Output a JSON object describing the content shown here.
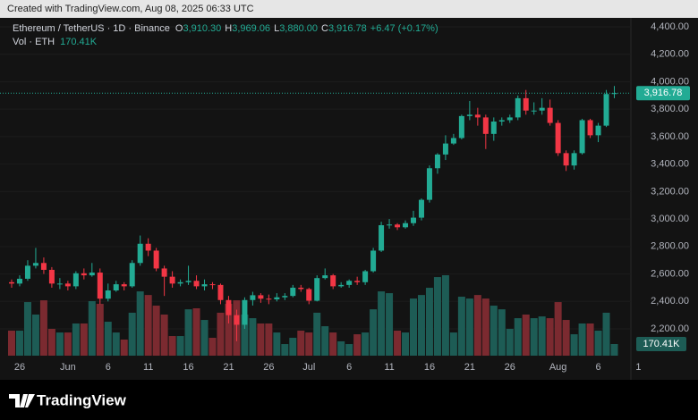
{
  "banner": "Created with TradingView.com, Aug 08, 2025 06:33 UTC",
  "footer": {
    "logo": "TradingView"
  },
  "chart_data": {
    "type": "candlestick",
    "title": "Ethereum / TetherUS · 1D · Binance",
    "ohlc_legend": [
      {
        "key": "O",
        "value": 3910.3,
        "label": "3,910.30"
      },
      {
        "key": "H",
        "value": 3969.06,
        "label": "3,969.06"
      },
      {
        "key": "L",
        "value": 3880,
        "label": "3,880.00"
      },
      {
        "key": "C",
        "value": 3916.78,
        "label": "3,916.78"
      }
    ],
    "change": {
      "value": 6.47,
      "label": "+6.47 (+0.17%)"
    },
    "volume_title": "Vol · ETH",
    "volume_last": {
      "value": 170.41,
      "label": "170.41K"
    },
    "categories": [
      null,
      "26",
      null,
      null,
      null,
      null,
      null,
      "Jun",
      null,
      null,
      null,
      null,
      "6",
      null,
      null,
      null,
      null,
      "11",
      null,
      null,
      null,
      null,
      "16",
      null,
      null,
      null,
      null,
      "21",
      null,
      null,
      null,
      null,
      "26",
      null,
      null,
      null,
      null,
      "Jul",
      null,
      null,
      null,
      null,
      "6",
      null,
      null,
      null,
      null,
      "11",
      null,
      null,
      null,
      null,
      "16",
      null,
      null,
      null,
      null,
      "21",
      null,
      null,
      null,
      null,
      "26",
      null,
      null,
      null,
      null,
      null,
      "Aug",
      null,
      null,
      null,
      null,
      "6",
      null,
      null,
      null,
      null,
      "1"
    ],
    "open": [
      2540,
      2530,
      2565,
      2660,
      2680,
      2630,
      2530,
      2530,
      2510,
      2605,
      2590,
      2610,
      2420,
      2480,
      2525,
      2510,
      2680,
      2820,
      2770,
      2640,
      2580,
      2530,
      2540,
      2550,
      2510,
      2525,
      2520,
      2410,
      2300,
      2230,
      2410,
      2445,
      2420,
      2415,
      2430,
      2440,
      2500,
      2490,
      2405,
      2570,
      2590,
      2510,
      2520,
      2550,
      2540,
      2620,
      2770,
      2955,
      2960,
      2940,
      2970,
      3010,
      3140,
      3370,
      3470,
      3550,
      3590,
      3750,
      3760,
      3740,
      3620,
      3710,
      3720,
      3740,
      3880,
      3790,
      3790,
      3810,
      3700,
      3480,
      3390,
      3480,
      3720,
      3610,
      3680,
      3910.3,
      null,
      null,
      null
    ],
    "high": [
      2560,
      2590,
      2700,
      2790,
      2720,
      2650,
      2570,
      2550,
      2620,
      2640,
      2680,
      2640,
      2530,
      2550,
      2540,
      2700,
      2880,
      2860,
      2790,
      2660,
      2620,
      2560,
      2660,
      2590,
      2560,
      2540,
      2530,
      2440,
      2340,
      2430,
      2470,
      2460,
      2450,
      2460,
      2460,
      2520,
      2520,
      2500,
      2590,
      2640,
      2600,
      2540,
      2560,
      2580,
      2630,
      2790,
      2980,
      3000,
      2970,
      2990,
      3060,
      3150,
      3390,
      3480,
      3610,
      3620,
      3760,
      3860,
      3810,
      3760,
      3740,
      3740,
      3760,
      3900,
      3940,
      3850,
      3880,
      3870,
      3720,
      3500,
      3500,
      3730,
      3730,
      3700,
      3940,
      3969.06,
      null,
      null,
      null
    ],
    "low": [
      2500,
      2510,
      2550,
      2640,
      2600,
      2500,
      2490,
      2480,
      2490,
      2560,
      2580,
      2380,
      2400,
      2470,
      2480,
      2500,
      2660,
      2730,
      2620,
      2440,
      2500,
      2510,
      2520,
      2490,
      2480,
      2490,
      2380,
      2240,
      2110,
      2200,
      2370,
      2390,
      2380,
      2400,
      2410,
      2430,
      2470,
      2380,
      2400,
      2560,
      2490,
      2500,
      2500,
      2520,
      2520,
      2610,
      2760,
      2930,
      2920,
      2930,
      2950,
      2990,
      3120,
      3330,
      3430,
      3540,
      3580,
      3720,
      3680,
      3510,
      3570,
      3680,
      3700,
      3720,
      3760,
      3760,
      3760,
      3680,
      3460,
      3350,
      3360,
      3470,
      3590,
      3560,
      3670,
      3880,
      null,
      null,
      null
    ],
    "close": [
      2530,
      2565,
      2660,
      2680,
      2630,
      2530,
      2530,
      2510,
      2605,
      2590,
      2610,
      2420,
      2480,
      2525,
      2510,
      2680,
      2820,
      2770,
      2640,
      2580,
      2530,
      2540,
      2550,
      2510,
      2525,
      2520,
      2410,
      2300,
      2230,
      2410,
      2445,
      2420,
      2415,
      2430,
      2440,
      2500,
      2490,
      2405,
      2570,
      2590,
      2510,
      2520,
      2550,
      2540,
      2620,
      2770,
      2955,
      2960,
      2940,
      2970,
      3010,
      3140,
      3370,
      3470,
      3550,
      3590,
      3750,
      3760,
      3740,
      3620,
      3710,
      3720,
      3740,
      3880,
      3790,
      3790,
      3810,
      3700,
      3480,
      3390,
      3480,
      3720,
      3610,
      3680,
      3910.3,
      3916.78,
      null,
      null,
      null
    ],
    "volume": [
      367,
      367,
      786,
      603,
      812,
      393,
      340,
      340,
      472,
      472,
      800,
      760,
      498,
      340,
      236,
      630,
      943,
      890,
      734,
      603,
      288,
      288,
      680,
      695,
      524,
      262,
      630,
      760,
      812,
      603,
      550,
      472,
      472,
      340,
      170,
      262,
      367,
      340,
      630,
      432,
      340,
      210,
      170,
      314,
      340,
      680,
      943,
      917,
      367,
      340,
      838,
      890,
      996,
      1153,
      1180,
      340,
      865,
      838,
      890,
      838,
      734,
      680,
      393,
      550,
      603,
      550,
      576,
      550,
      786,
      524,
      314,
      472,
      472,
      367,
      630,
      170.41,
      null,
      null,
      null
    ],
    "last_price": {
      "value": 3916.78,
      "label": "3,916.78"
    },
    "ylim": [
      2005,
      4452
    ],
    "yticks": [
      {
        "value": 4400,
        "label": "4,400.00"
      },
      {
        "value": 4200,
        "label": "4,200.00"
      },
      {
        "value": 4000,
        "label": "4,000.00"
      },
      {
        "value": 3800,
        "label": "3,800.00"
      },
      {
        "value": 3600,
        "label": "3,600.00"
      },
      {
        "value": 3400,
        "label": "3,400.00"
      },
      {
        "value": 3200,
        "label": "3,200.00"
      },
      {
        "value": 3000,
        "label": "3,000.00"
      },
      {
        "value": 2800,
        "label": "2,800.00"
      },
      {
        "value": 2600,
        "label": "2,600.00"
      },
      {
        "value": 2400,
        "label": "2,400.00"
      },
      {
        "value": 2200,
        "label": "2,200.00"
      }
    ],
    "grid": true,
    "up_color": "#22ab94",
    "down_color": "#f23645",
    "up_volume_color": "#1d5c55",
    "down_volume_color": "#7b2a30"
  }
}
